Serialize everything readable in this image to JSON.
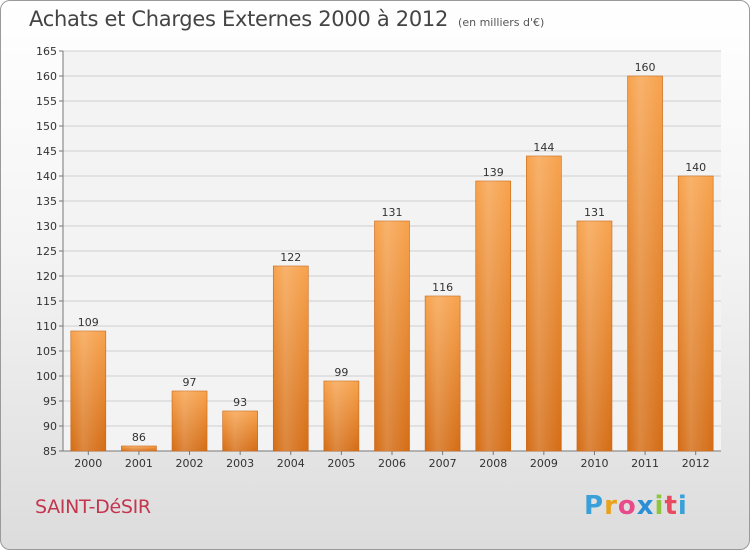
{
  "title": "Achats et Charges Externes 2000 à 2012",
  "subtitle": "(en milliers d'€)",
  "commune": "SAINT-DéSIR",
  "logo": {
    "letters": [
      "P",
      "r",
      "o",
      "x",
      "i",
      "t",
      "i"
    ],
    "colors": [
      "#3aa0d8",
      "#e8a21c",
      "#e84a8a",
      "#2b8fd6",
      "#8cc63f",
      "#e84a5f",
      "#3aa0d8"
    ]
  },
  "chart_data": {
    "type": "bar",
    "categories": [
      "2000",
      "2001",
      "2002",
      "2003",
      "2004",
      "2005",
      "2006",
      "2007",
      "2008",
      "2009",
      "2010",
      "2011",
      "2012"
    ],
    "values": [
      109,
      86,
      97,
      93,
      122,
      99,
      131,
      116,
      139,
      144,
      131,
      160,
      140
    ],
    "ylim": [
      85,
      165
    ],
    "yticks": [
      85,
      90,
      95,
      100,
      105,
      110,
      115,
      120,
      125,
      130,
      135,
      140,
      145,
      150,
      155,
      160,
      165
    ],
    "grid": true,
    "bar_color": "#f0902e",
    "xlabel": "",
    "ylabel": ""
  }
}
